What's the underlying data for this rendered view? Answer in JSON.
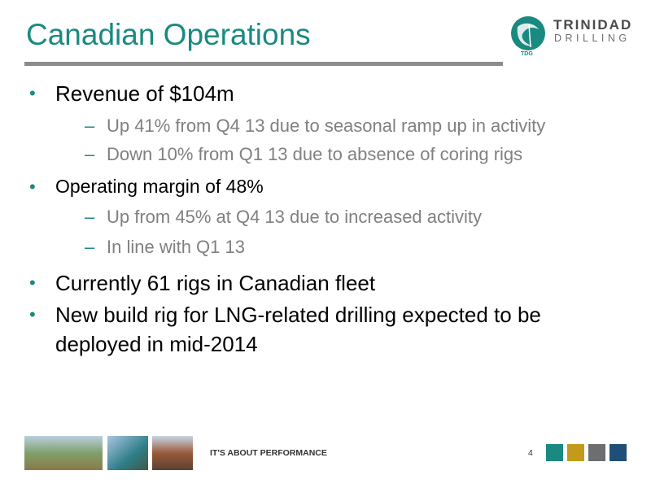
{
  "header": {
    "title": "Canadian Operations"
  },
  "logo": {
    "name": "TRINIDAD",
    "subname": "DRILLING",
    "mark": "TDG"
  },
  "bullets": [
    {
      "text": "Revenue of $104m",
      "subs": [
        "Up 41% from Q4 13 due to seasonal ramp up in activity",
        "Down 10% from Q1 13 due to absence of coring rigs"
      ]
    },
    {
      "text": "Operating margin of 48%",
      "subs": [
        "Up from 45% at Q4 13 due to increased activity",
        "In line with Q1 13"
      ]
    },
    {
      "text": "Currently 61 rigs in Canadian fleet",
      "subs": []
    },
    {
      "text": "New build rig for LNG-related drilling expected to be",
      "continuation": "deployed in mid-2014",
      "subs": []
    }
  ],
  "footer": {
    "tagline": "IT'S ABOUT PERFORMANCE",
    "page": "4"
  }
}
